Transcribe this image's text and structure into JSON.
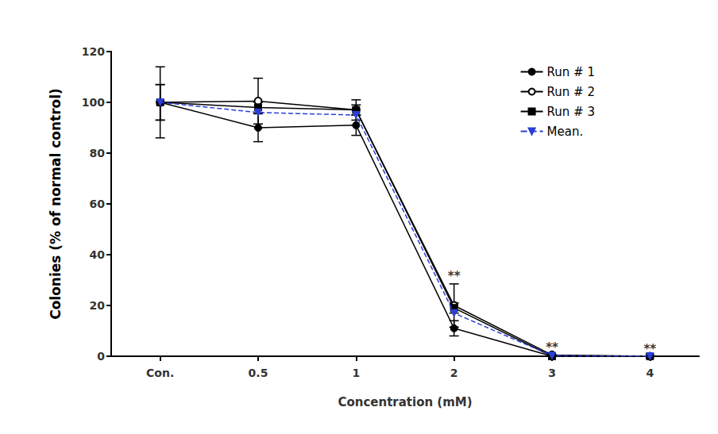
{
  "chart_data": {
    "type": "line",
    "x_label": "Concentration (mM)",
    "y_label": "Colonies (% of normal control)",
    "categories": [
      "Con.",
      "0.5",
      "1",
      "2",
      "3",
      "4"
    ],
    "series": [
      {
        "name": "Run # 1",
        "color": "#000000",
        "marker": "circle",
        "line_style": "solid",
        "values": [
          100,
          90,
          91,
          11,
          0,
          0
        ],
        "errors": [
          14,
          5.5,
          4,
          3,
          0,
          0
        ]
      },
      {
        "name": "Run # 2",
        "color": "#000000",
        "marker": "open_circle",
        "line_style": "solid",
        "values": [
          100,
          100.5,
          97,
          20,
          0.5,
          0
        ],
        "errors": [
          7,
          9,
          4,
          8.5,
          0,
          0
        ]
      },
      {
        "name": "Run # 3",
        "color": "#000000",
        "marker": "square",
        "line_style": "solid",
        "values": [
          100,
          98,
          97,
          19,
          0,
          0
        ],
        "errors": [
          7,
          2,
          2,
          2,
          0,
          0
        ]
      },
      {
        "name": "Mean.",
        "color": "#2b3fd6",
        "marker": "triangle_down",
        "line_style": "dashed",
        "values": [
          100,
          96,
          95,
          17,
          0.2,
          0
        ]
      }
    ],
    "ylim": [
      0,
      120
    ],
    "yticks": [
      0,
      20,
      40,
      60,
      80,
      100,
      120
    ],
    "grid": false,
    "legend": "upper right",
    "annotations": [
      {
        "text": "**",
        "category": "2"
      },
      {
        "text": "**",
        "category": "3"
      },
      {
        "text": "**",
        "category": "4"
      }
    ]
  }
}
